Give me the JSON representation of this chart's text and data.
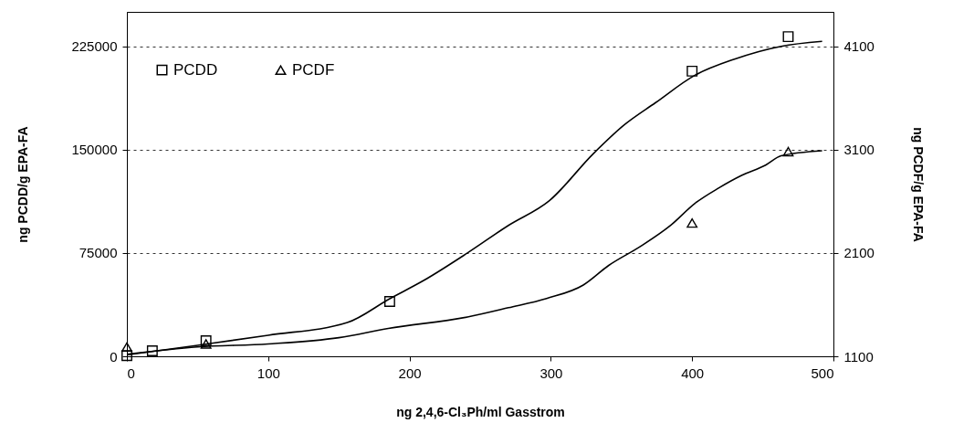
{
  "chart_data": {
    "type": "scatter",
    "xlabel": "ng 2,4,6-Cl₃Ph/ml Gasstrom",
    "ylabel": "ng PCDD/g EPA-FA",
    "y2label": "ng PCDF/g EPA-FA",
    "xlim": [
      0,
      500
    ],
    "xticks": [
      0,
      100,
      200,
      300,
      400,
      500
    ],
    "ylim": [
      0,
      250000
    ],
    "yticks": [
      0,
      75000,
      150000,
      225000
    ],
    "y2lim": [
      1100,
      4433.3
    ],
    "y2ticks": [
      1100,
      2100,
      3100,
      4100
    ],
    "grid": "y",
    "legend": "top left",
    "series": [
      {
        "name": "PCDD",
        "marker": "square",
        "color": "#000000",
        "x": [
          0,
          18,
          56,
          186,
          400,
          468
        ],
        "values": [
          500,
          4000,
          11300,
          39800,
          207000,
          232000
        ]
      },
      {
        "name": "PCDF",
        "marker": "triangle",
        "axis": "y2",
        "color": "#000000",
        "x": [
          0,
          56,
          400,
          468
        ],
        "values": [
          1190,
          1220,
          2390,
          3080
        ]
      },
      {
        "type": "line",
        "color": "#000000",
        "line_style": "solid",
        "x": [
          0,
          50,
          100,
          156,
          186,
          210,
          241,
          270,
          299,
          330,
          352,
          374,
          402,
          430,
          463,
          492
        ],
        "values": [
          1000,
          8000,
          15300,
          24500,
          41800,
          55000,
          75000,
          95000,
          113000,
          147000,
          168000,
          184000,
          204000,
          215700,
          225000,
          228600
        ]
      },
      {
        "type": "line",
        "axis": "y2",
        "color": "#000000",
        "line_style": "solid",
        "x": [
          0,
          50,
          100,
          150,
          185,
          241,
          270,
          297,
          323,
          341,
          363,
          385,
          402,
          419,
          435,
          452,
          463,
          492
        ],
        "values": [
          1120,
          1190,
          1220,
          1280,
          1370,
          1480,
          1570,
          1660,
          1790,
          1980,
          2160,
          2370,
          2580,
          2730,
          2850,
          2950,
          3040,
          3090
        ]
      }
    ]
  }
}
